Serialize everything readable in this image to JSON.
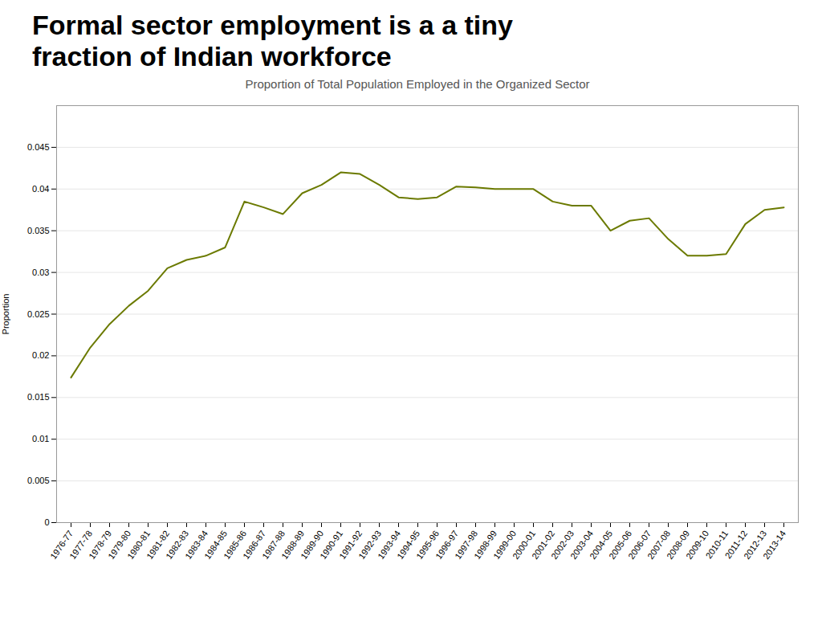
{
  "chart_data": {
    "type": "line",
    "title": "Formal sector employment is a a tiny\nfraction of Indian workforce",
    "subtitle": "Proportion of Total Population Employed in the Organized Sector",
    "ylabel": "Proportion",
    "color": "#6b7a00",
    "categories": [
      "1976-77",
      "1977-78",
      "1978-79",
      "1979-80",
      "1980-81",
      "1981-82",
      "1982-83",
      "1983-84",
      "1984-85",
      "1985-86",
      "1986-87",
      "1987-88",
      "1988-89",
      "1989-90",
      "1990-91",
      "1991-92",
      "1992-93",
      "1993-94",
      "1994-95",
      "1995-96",
      "1996-97",
      "1997-98",
      "1998-99",
      "1999-00",
      "2000-01",
      "2001-02",
      "2002-03",
      "2003-04",
      "2004-05",
      "2005-06",
      "2006-07",
      "2007-08",
      "2008-09",
      "2009-10",
      "2010-11",
      "2011-12",
      "2012-13",
      "2013-14"
    ],
    "values": [
      0.0174,
      0.021,
      0.0238,
      0.026,
      0.0278,
      0.0305,
      0.0315,
      0.032,
      0.033,
      0.0385,
      0.0378,
      0.037,
      0.0395,
      0.0405,
      0.042,
      0.0418,
      0.0405,
      0.039,
      0.0388,
      0.039,
      0.0403,
      0.0402,
      0.04,
      0.04,
      0.04,
      0.0385,
      0.038,
      0.038,
      0.035,
      0.0362,
      0.0365,
      0.034,
      0.032,
      0.032,
      0.0322,
      0.0358,
      0.0375,
      0.0378
    ],
    "ylim": [
      0,
      0.05
    ],
    "yticks": [
      0,
      0.005,
      0.01,
      0.015,
      0.02,
      0.025,
      0.03,
      0.035,
      0.04,
      0.045
    ],
    "grid": "y"
  }
}
